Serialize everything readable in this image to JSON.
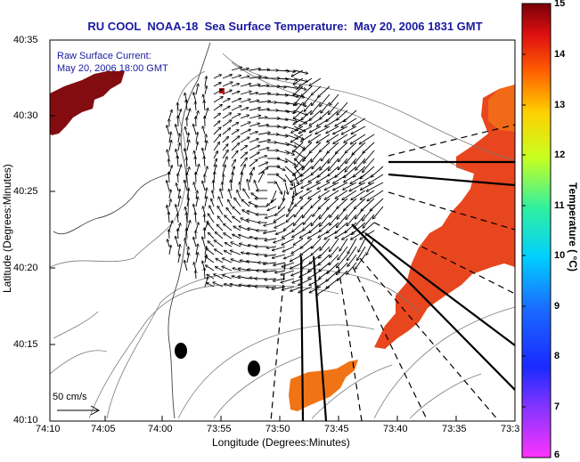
{
  "title": "RU COOL  NOAA-18  Sea Surface Temperature:  May 20, 2006 1831 GMT",
  "current_label_line1": "Raw Surface Current:",
  "current_label_line2": "May 20, 2006 18:00 GMT",
  "scale_label": "50 cm/s",
  "chart_data": {
    "type": "heatmap",
    "title": "RU COOL  NOAA-18  Sea Surface Temperature:  May 20, 2006 1831 GMT",
    "xlabel": "Longitude (Degrees:Minutes)",
    "ylabel": "Latitude (Degrees:Minutes)",
    "x_ticks": [
      "74:10",
      "74:05",
      "74:00",
      "73:55",
      "73:50",
      "73:45",
      "73:40",
      "73:35",
      "73:3"
    ],
    "y_ticks": [
      "40:35",
      "40:30",
      "40:25",
      "40:20",
      "40:15",
      "40:10"
    ],
    "colorbar": {
      "label": "Temperature ( °C)",
      "ticks": [
        "15",
        "14",
        "13",
        "12",
        "11",
        "10",
        "9",
        "8",
        "7",
        "6"
      ],
      "range": [
        6,
        15
      ]
    },
    "layers": [
      "sea surface temperature",
      "raw surface current vectors",
      "bathymetry contours",
      "shipping lanes"
    ]
  },
  "colors": {
    "title": "#1a1a9e",
    "sst_warm": "#e8401c",
    "sst_orange": "#f06a12",
    "sst_hot": "#8a0e10"
  }
}
